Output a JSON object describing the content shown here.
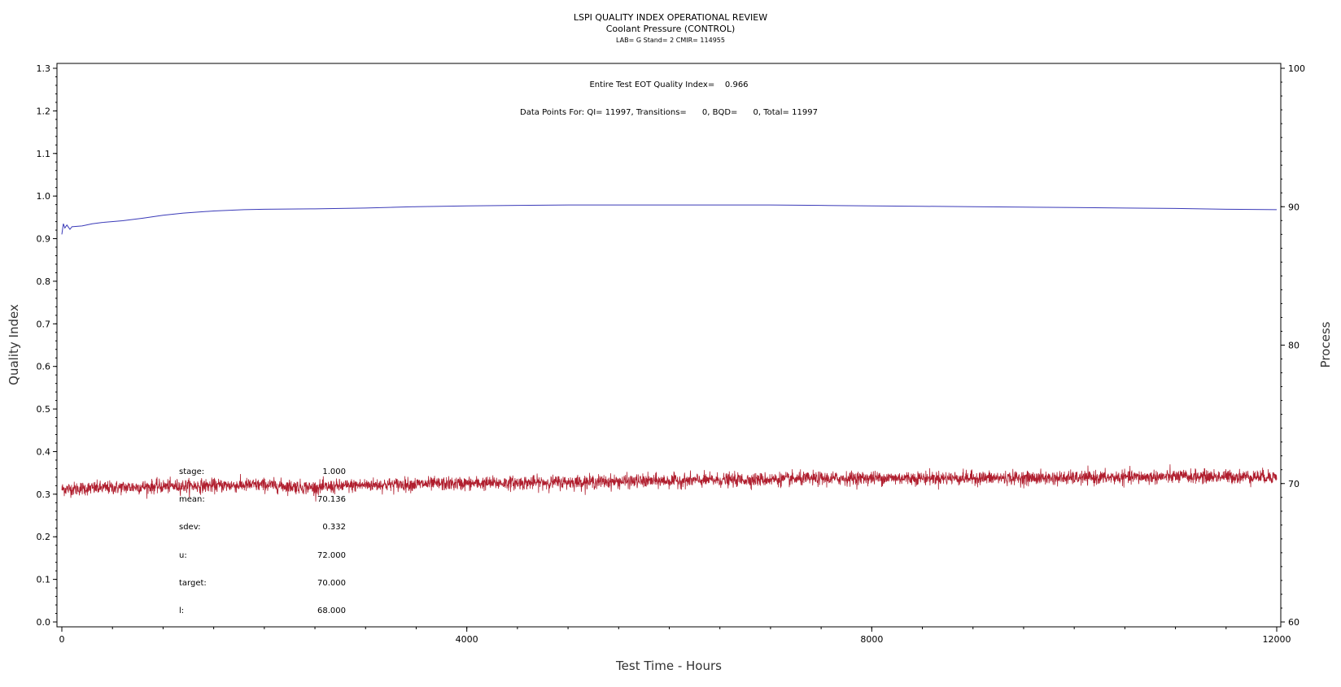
{
  "chart_data": {
    "type": "line",
    "title": "LSPI QUALITY INDEX OPERATIONAL REVIEW",
    "subtitle": "Coolant Pressure (CONTROL)",
    "subtitle2": "LAB= G Stand= 2 CMIR= 114955",
    "annotations": {
      "eot": "Entire Test EOT Quality Index=    0.966",
      "points": "Data Points For: QI= 11997, Transitions=      0, BQD=      0, Total= 11997"
    },
    "xlabel": "Test Time - Hours",
    "ylabel_left": "Quality Index",
    "ylabel_right": "Process",
    "xlim": [
      0,
      12000
    ],
    "ylim_left": [
      0.0,
      1.3
    ],
    "ylim_right": [
      60,
      100
    ],
    "x_ticks": [
      "0",
      "4000",
      "8000",
      "12000"
    ],
    "y_left_ticks": [
      "0.0",
      "0.1",
      "0.2",
      "0.3",
      "0.4",
      "0.5",
      "0.6",
      "0.7",
      "0.8",
      "0.9",
      "1.0",
      "1.1",
      "1.2",
      "1.3"
    ],
    "y_right_ticks": [
      "60",
      "70",
      "80",
      "90",
      "100"
    ],
    "grid": false,
    "series": [
      {
        "axis": "left",
        "color": "#3a3ab8",
        "points": [
          [
            0,
            0.91
          ],
          [
            15,
            0.935
          ],
          [
            30,
            0.925
          ],
          [
            50,
            0.932
          ],
          [
            80,
            0.922
          ],
          [
            100,
            0.928
          ],
          [
            200,
            0.93
          ],
          [
            300,
            0.935
          ],
          [
            400,
            0.938
          ],
          [
            600,
            0.942
          ],
          [
            800,
            0.948
          ],
          [
            1000,
            0.955
          ],
          [
            1200,
            0.96
          ],
          [
            1500,
            0.965
          ],
          [
            1800,
            0.968
          ],
          [
            2000,
            0.969
          ],
          [
            2500,
            0.97
          ],
          [
            3000,
            0.972
          ],
          [
            3500,
            0.975
          ],
          [
            4000,
            0.977
          ],
          [
            4500,
            0.978
          ],
          [
            5000,
            0.979
          ],
          [
            5500,
            0.979
          ],
          [
            6000,
            0.979
          ],
          [
            6500,
            0.979
          ],
          [
            7000,
            0.979
          ],
          [
            7500,
            0.978
          ],
          [
            8000,
            0.977
          ],
          [
            8500,
            0.976
          ],
          [
            9000,
            0.975
          ],
          [
            9500,
            0.974
          ],
          [
            10000,
            0.973
          ],
          [
            10500,
            0.972
          ],
          [
            11000,
            0.971
          ],
          [
            11500,
            0.969
          ],
          [
            12000,
            0.968
          ]
        ]
      },
      {
        "axis": "right",
        "color": "#b01e2e",
        "noise_sdev": 0.332,
        "trend": [
          [
            0,
            69.6
          ],
          [
            1000,
            69.8
          ],
          [
            2000,
            69.9
          ],
          [
            2500,
            69.7
          ],
          [
            3000,
            69.9
          ],
          [
            4000,
            70.0
          ],
          [
            5000,
            70.1
          ],
          [
            6000,
            70.2
          ],
          [
            7000,
            70.3
          ],
          [
            8000,
            70.4
          ],
          [
            9000,
            70.4
          ],
          [
            10000,
            70.4
          ],
          [
            11000,
            70.5
          ],
          [
            12000,
            70.5
          ]
        ]
      }
    ],
    "stats": [
      {
        "label": "stage:",
        "value": "1.000"
      },
      {
        "label": "mean:",
        "value": "70.136"
      },
      {
        "label": "sdev:",
        "value": "0.332"
      },
      {
        "label": "u:",
        "value": "72.000"
      },
      {
        "label": "target:",
        "value": "70.000"
      },
      {
        "label": "l:",
        "value": "68.000"
      }
    ]
  }
}
